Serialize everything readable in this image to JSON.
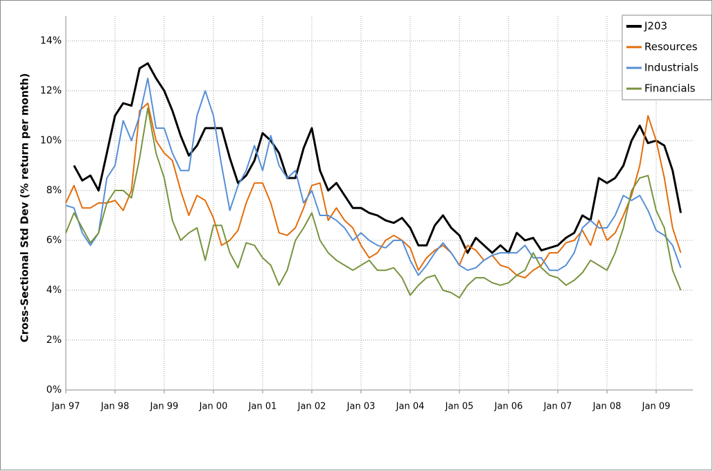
{
  "chart_data": {
    "type": "line",
    "y_label": "Cross-Sectional Std Dev (% return per month)",
    "categories": [
      "Jan 97",
      null,
      null,
      null,
      null,
      null,
      "Jan 98",
      null,
      null,
      null,
      null,
      null,
      "Jan 99",
      null,
      null,
      null,
      null,
      null,
      "Jan 00",
      null,
      null,
      null,
      null,
      null,
      "Jan 01",
      null,
      null,
      null,
      null,
      null,
      "Jan 02",
      null,
      null,
      null,
      null,
      null,
      "Jan 03",
      null,
      null,
      null,
      null,
      null,
      "Jan 04",
      null,
      null,
      null,
      null,
      null,
      "Jan 05",
      null,
      null,
      null,
      null,
      null,
      "Jan 06",
      null,
      null,
      null,
      null,
      null,
      "Jan 07",
      null,
      null,
      null,
      null,
      null,
      "Jan 08",
      null,
      null,
      null,
      null,
      null,
      "Jan 09",
      null,
      null,
      null
    ],
    "series": [
      {
        "name": "J203",
        "color": "#000000",
        "width": 3,
        "values": [
          null,
          9.0,
          8.4,
          8.6,
          8.0,
          9.5,
          11.0,
          11.5,
          11.4,
          12.9,
          13.1,
          12.5,
          12.0,
          11.2,
          10.2,
          9.4,
          9.8,
          10.5,
          10.5,
          10.5,
          9.3,
          8.3,
          8.6,
          9.2,
          10.3,
          10.0,
          9.5,
          8.5,
          8.5,
          9.7,
          10.5,
          8.8,
          8.0,
          8.3,
          7.8,
          7.3,
          7.3,
          7.1,
          7.0,
          6.8,
          6.7,
          6.9,
          6.5,
          5.8,
          5.8,
          6.6,
          7.0,
          6.5,
          6.2,
          5.5,
          6.1,
          5.8,
          5.5,
          5.8,
          5.5,
          6.3,
          6.0,
          6.1,
          5.6,
          5.7,
          5.8,
          6.1,
          6.3,
          7.0,
          6.8,
          8.5,
          8.3,
          8.5,
          9.0,
          10.0,
          10.6,
          9.9,
          10.0,
          9.8,
          8.8,
          7.1
        ]
      },
      {
        "name": "Resources",
        "color": "#e36c0a",
        "width": 2,
        "values": [
          7.5,
          8.2,
          7.3,
          7.3,
          7.5,
          7.5,
          7.6,
          7.2,
          8.0,
          11.2,
          11.5,
          10.0,
          9.5,
          9.2,
          8.0,
          7.0,
          7.8,
          7.6,
          6.9,
          5.8,
          6.0,
          6.4,
          7.5,
          8.3,
          8.3,
          7.5,
          6.3,
          6.2,
          6.5,
          7.3,
          8.2,
          8.3,
          6.8,
          7.3,
          6.8,
          6.5,
          5.8,
          5.3,
          5.5,
          6.0,
          6.2,
          6.0,
          5.7,
          4.8,
          5.3,
          5.6,
          5.8,
          5.5,
          5.0,
          5.8,
          5.6,
          5.2,
          5.4,
          5.0,
          4.9,
          4.6,
          4.5,
          4.8,
          5.0,
          5.5,
          5.5,
          5.9,
          6.0,
          6.4,
          5.8,
          6.8,
          6.0,
          6.3,
          7.0,
          7.8,
          9.0,
          11.0,
          10.0,
          8.5,
          6.5,
          5.5
        ]
      },
      {
        "name": "Industrials",
        "color": "#558ed5",
        "width": 2,
        "values": [
          7.4,
          7.3,
          6.3,
          5.8,
          6.3,
          8.5,
          9.0,
          10.8,
          10.0,
          11.0,
          12.5,
          10.5,
          10.5,
          9.5,
          8.8,
          8.8,
          11.0,
          12.0,
          11.0,
          9.0,
          7.2,
          8.2,
          8.8,
          9.8,
          8.8,
          10.2,
          9.0,
          8.5,
          8.8,
          7.5,
          8.0,
          7.0,
          7.0,
          6.8,
          6.5,
          6.0,
          6.3,
          6.0,
          5.8,
          5.7,
          6.0,
          6.0,
          5.2,
          4.6,
          5.0,
          5.5,
          5.9,
          5.5,
          5.0,
          4.8,
          4.9,
          5.2,
          5.4,
          5.5,
          5.5,
          5.5,
          5.8,
          5.3,
          5.3,
          4.8,
          4.8,
          5.0,
          5.5,
          6.5,
          6.8,
          6.5,
          6.5,
          7.0,
          7.8,
          7.6,
          7.8,
          7.2,
          6.4,
          6.2,
          5.8,
          4.9
        ]
      },
      {
        "name": "Financials",
        "color": "#77933c",
        "width": 2,
        "values": [
          6.3,
          7.1,
          6.5,
          5.9,
          6.3,
          7.5,
          8.0,
          8.0,
          7.7,
          9.3,
          11.3,
          9.5,
          8.5,
          6.8,
          6.0,
          6.3,
          6.5,
          5.2,
          6.6,
          6.6,
          5.5,
          4.9,
          5.9,
          5.8,
          5.3,
          5.0,
          4.2,
          4.8,
          6.0,
          6.5,
          7.1,
          6.0,
          5.5,
          5.2,
          5.0,
          4.8,
          5.0,
          5.2,
          4.8,
          4.8,
          4.9,
          4.5,
          3.8,
          4.2,
          4.5,
          4.6,
          4.0,
          3.9,
          3.7,
          4.2,
          4.5,
          4.5,
          4.3,
          4.2,
          4.3,
          4.6,
          4.8,
          5.5,
          4.9,
          4.6,
          4.5,
          4.2,
          4.4,
          4.7,
          5.2,
          5.0,
          4.8,
          5.5,
          6.5,
          8.0,
          8.5,
          8.6,
          7.2,
          6.5,
          4.8,
          4.0
        ]
      }
    ],
    "ylim": [
      0,
      15
    ],
    "yticks": [
      {
        "value": 0,
        "label": "0%"
      },
      {
        "value": 2,
        "label": "2%"
      },
      {
        "value": 4,
        "label": "4%"
      },
      {
        "value": 6,
        "label": "6%"
      },
      {
        "value": 8,
        "label": "8%"
      },
      {
        "value": 10,
        "label": "10%"
      },
      {
        "value": 12,
        "label": "12%"
      },
      {
        "value": 14,
        "label": "14%"
      }
    ],
    "grid": true,
    "legend": "top-right"
  }
}
